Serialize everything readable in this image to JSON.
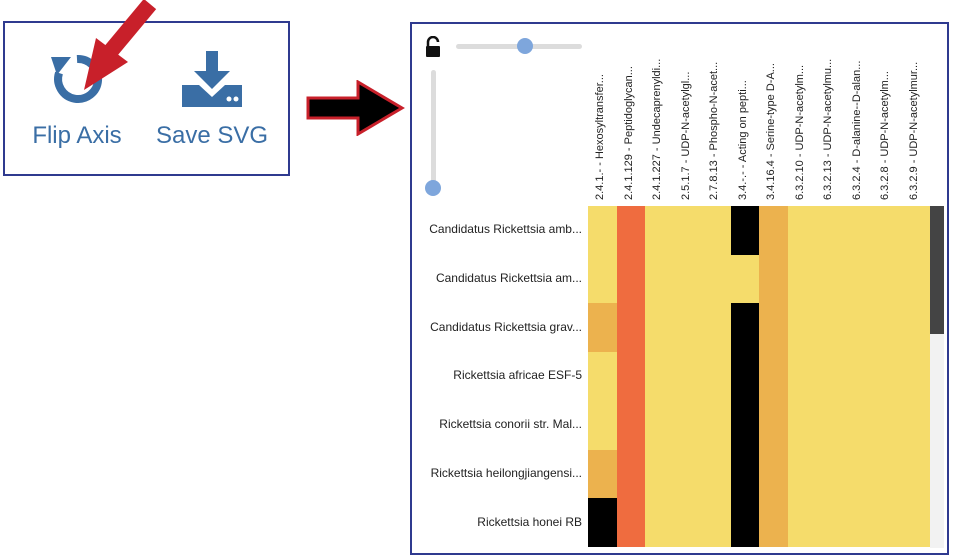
{
  "toolbar": {
    "flip_label": "Flip Axis",
    "save_label": "Save SVG"
  },
  "heatmap": {
    "columns": [
      "2.4.1.- - Hexosyltransfer...",
      "2.4.1.129 - Peptidoglycan...",
      "2.4.1.227 - Undecaprenyldi...",
      "2.5.1.7 - UDP-N-acetylgl...",
      "2.7.8.13 - Phospho-N-acet...",
      "3.4.-.- - Acting on pepti...",
      "3.4.16.4 - Serine-type D-A...",
      "6.3.2.10 - UDP-N-acetylm...",
      "6.3.2.13 - UDP-N-acetylmu...",
      "6.3.2.4 - D-alanine--D-alan...",
      "6.3.2.8 - UDP-N-acetylm...",
      "6.3.2.9 - UDP-N-acetylmur..."
    ],
    "rows": [
      "Candidatus Rickettsia amb...",
      "Candidatus Rickettsia am...",
      "Candidatus Rickettsia grav...",
      "Rickettsia africae ESF-5",
      "Rickettsia conorii str. Mal...",
      "Rickettsia heilongjiangensi...",
      "Rickettsia honei RB"
    ],
    "cells": [
      [
        1,
        2,
        1,
        1,
        1,
        0,
        3,
        1,
        1,
        1,
        1,
        1
      ],
      [
        1,
        2,
        1,
        1,
        1,
        1,
        3,
        1,
        1,
        1,
        1,
        1
      ],
      [
        3,
        2,
        1,
        1,
        1,
        0,
        3,
        1,
        1,
        1,
        1,
        1
      ],
      [
        1,
        2,
        1,
        1,
        1,
        0,
        3,
        1,
        1,
        1,
        1,
        1
      ],
      [
        1,
        2,
        1,
        1,
        1,
        0,
        3,
        1,
        1,
        1,
        1,
        1
      ],
      [
        3,
        2,
        1,
        1,
        1,
        0,
        3,
        1,
        1,
        1,
        1,
        1
      ],
      [
        0,
        2,
        1,
        1,
        1,
        0,
        3,
        1,
        1,
        1,
        1,
        1
      ]
    ],
    "palette": {
      "0": "#000000",
      "1": "#f5dc6b",
      "2": "#ef6c3f",
      "3": "#ecb24e"
    },
    "horizontal_slider": 0.55,
    "vertical_slider": 0.0,
    "scrollbar_color": "#444444"
  },
  "colors": {
    "accent": "#3a6ea5",
    "frame": "#2f3a8f",
    "arrow_red": "#c8202a",
    "slider_thumb": "#7ea6dc",
    "slider_track": "#dcdcdc"
  },
  "icons": {
    "flip": "undo-icon",
    "save": "download-icon",
    "lock": "unlock-icon"
  }
}
